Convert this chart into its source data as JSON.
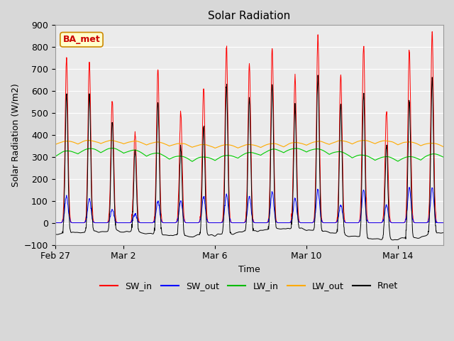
{
  "title": "Solar Radiation",
  "xlabel": "Time",
  "ylabel": "Solar Radiation (W/m2)",
  "ylim": [
    -100,
    900
  ],
  "yticks": [
    -100,
    0,
    100,
    200,
    300,
    400,
    500,
    600,
    700,
    800,
    900
  ],
  "fig_bg_color": "#e0e0e0",
  "plot_bg_color": "#e8e8e8",
  "plot_bg_inner": "#f0f0f0",
  "grid_color": "#ffffff",
  "legend_labels": [
    "SW_in",
    "SW_out",
    "LW_in",
    "LW_out",
    "Rnet"
  ],
  "legend_colors": [
    "#ff0000",
    "#0000ff",
    "#00bb00",
    "#ffaa00",
    "#000000"
  ],
  "series_colors": {
    "SW_in": "#ff0000",
    "SW_out": "#0000ff",
    "LW_in": "#00cc00",
    "LW_out": "#ffaa00",
    "Rnet": "#000000"
  },
  "annotation_text": "BA_met",
  "annotation_color": "#cc0000",
  "annotation_bg": "#ffffcc",
  "annotation_border": "#cc8800",
  "x_tick_labels": [
    "Feb 27",
    "Mar 2",
    "Mar 6",
    "Mar 10",
    "Mar 14"
  ],
  "x_tick_positions": [
    0,
    3,
    7,
    11,
    15
  ],
  "n_days": 17,
  "sw_peaks": [
    750,
    730,
    560,
    410,
    700,
    500,
    610,
    800,
    720,
    790,
    660,
    850,
    670,
    800,
    510,
    790,
    860
  ],
  "sw_out_peaks": [
    120,
    110,
    60,
    40,
    100,
    100,
    120,
    130,
    120,
    140,
    110,
    150,
    80,
    150,
    80,
    160,
    160
  ],
  "lw_in_base": 300,
  "lw_out_base": 350,
  "n_per_day": 96
}
